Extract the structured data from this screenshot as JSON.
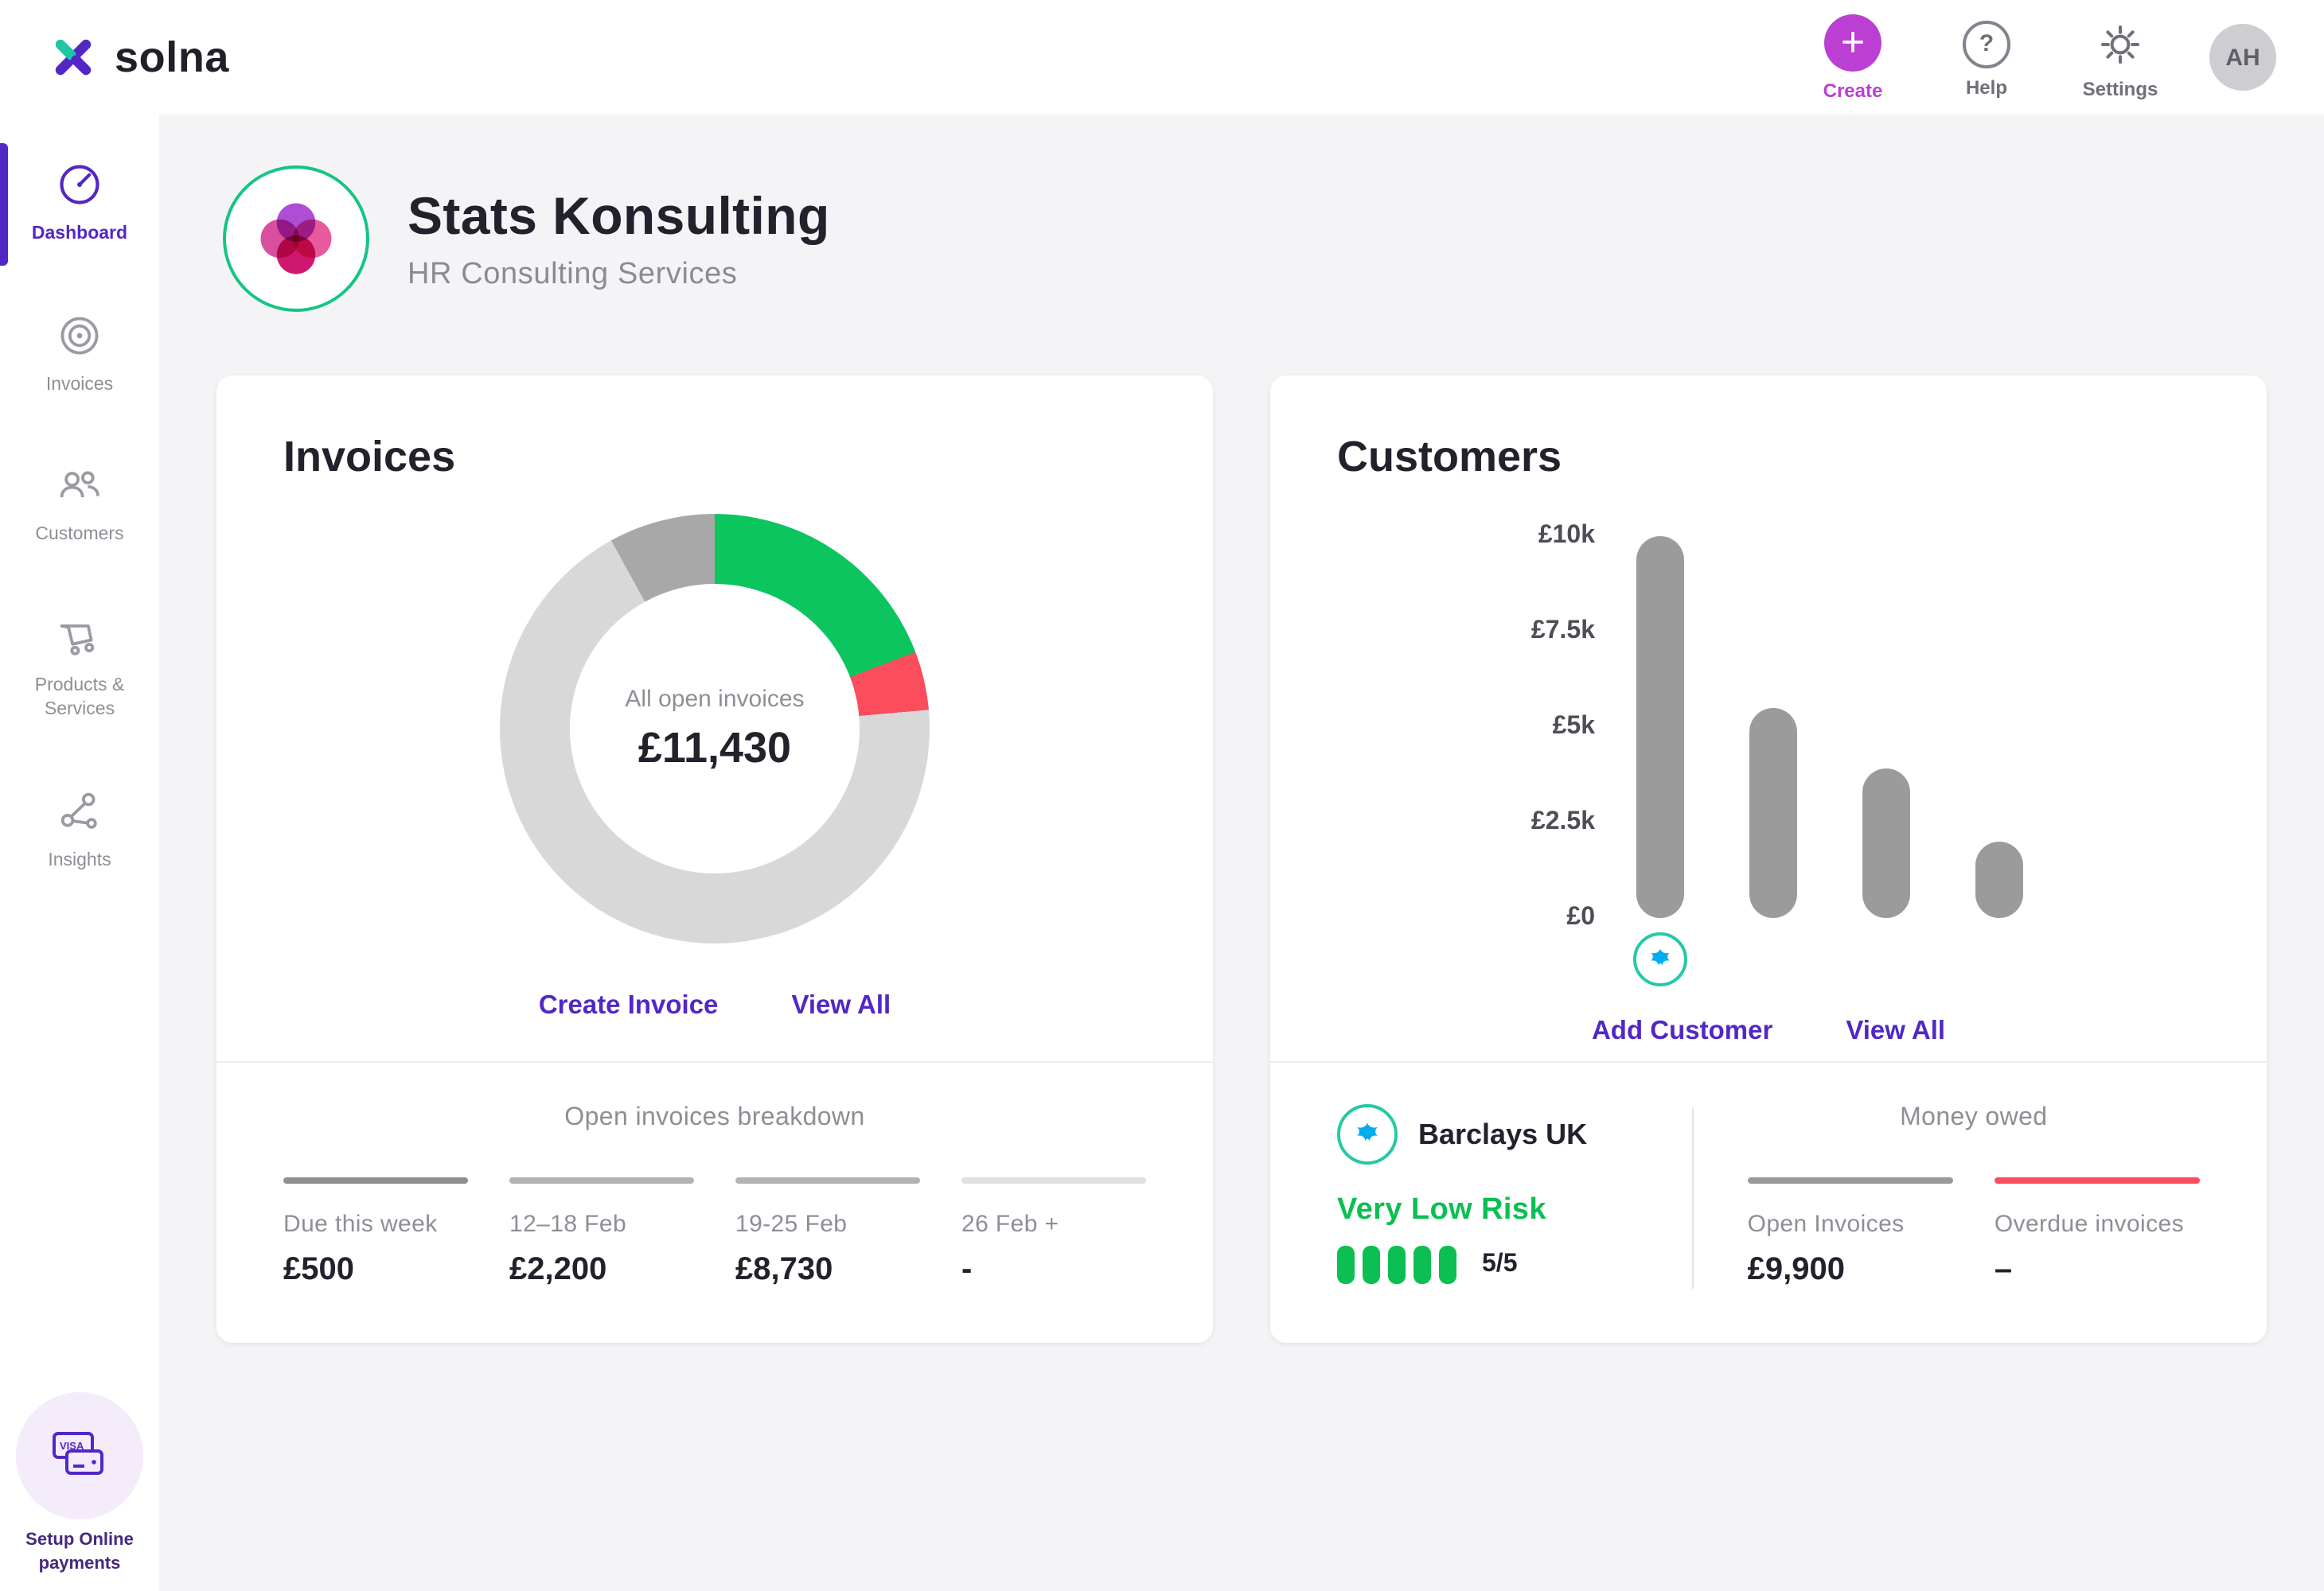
{
  "topbar": {
    "brand": "solna",
    "create_label": "Create",
    "help_label": "Help",
    "settings_label": "Settings",
    "avatar_initials": "AH"
  },
  "sidebar": {
    "items": [
      {
        "label": "Dashboard",
        "active": true
      },
      {
        "label": "Invoices",
        "active": false
      },
      {
        "label": "Customers",
        "active": false
      },
      {
        "label": "Products & Services",
        "active": false
      },
      {
        "label": "Insights",
        "active": false
      }
    ],
    "footer_label": "Setup Online payments"
  },
  "header": {
    "company": "Stats Konsulting",
    "subtitle": "HR Consulting Services"
  },
  "invoices_card": {
    "title": "Invoices",
    "donut_center_label": "All open invoices",
    "donut_center_value": "£11,430",
    "links": {
      "create": "Create Invoice",
      "view_all": "View All"
    },
    "breakdown": {
      "title": "Open invoices breakdown",
      "items": [
        {
          "label": "Due this week",
          "value": "£500",
          "bar_color": "#8f8f8f"
        },
        {
          "label": "12–18 Feb",
          "value": "£2,200",
          "bar_color": "#b3b3b3"
        },
        {
          "label": "19-25 Feb",
          "value": "£8,730",
          "bar_color": "#b3b3b3"
        },
        {
          "label": "26 Feb +",
          "value": "-",
          "bar_color": "#e0e0e0"
        }
      ]
    }
  },
  "customers_card": {
    "title": "Customers",
    "links": {
      "add": "Add Customer",
      "view_all": "View All"
    },
    "customer": {
      "name": "Barclays UK",
      "risk_label": "Very Low Risk",
      "risk_score": "5/5"
    },
    "money_owed": {
      "title": "Money owed",
      "items": [
        {
          "label": "Open Invoices",
          "value": "£9,900",
          "bar_color": "#9a9a9a"
        },
        {
          "label": "Overdue invoices",
          "value": "–",
          "bar_color": "#fb4d5c"
        }
      ]
    }
  },
  "chart_data": [
    {
      "type": "pie",
      "title": "All open invoices",
      "center_value": "£11,430",
      "slices": [
        {
          "label": "segment-green",
          "value": 19.2,
          "color": "#0cc55f"
        },
        {
          "label": "segment-red",
          "value": 4.4,
          "color": "#fb4d5c"
        },
        {
          "label": "segment-light-gray",
          "value": 68.4,
          "color": "#d8d8d8"
        },
        {
          "label": "segment-dark-gray",
          "value": 8.0,
          "color": "#a8a8a8"
        }
      ]
    },
    {
      "type": "bar",
      "title": "Customers",
      "categories": [
        "Barclays UK",
        "",
        "",
        ""
      ],
      "values": [
        10000,
        5500,
        3900,
        2000
      ],
      "yticks": [
        "£10k",
        "£7.5k",
        "£5k",
        "£2.5k",
        "£0"
      ],
      "ylim": [
        0,
        10000
      ],
      "bar_color": "#9b9b9b",
      "grid": false,
      "legend": false
    }
  ]
}
